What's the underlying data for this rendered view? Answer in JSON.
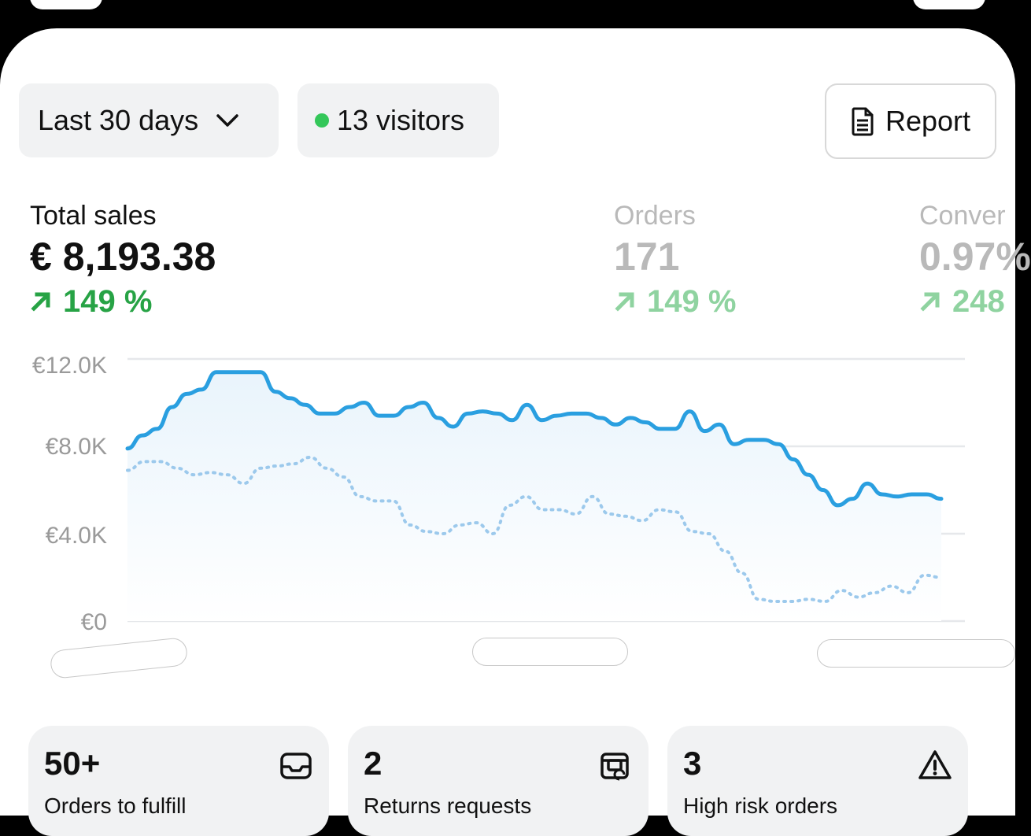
{
  "toolbar": {
    "range_label": "Last 30 days",
    "visitors_label": "13 visitors",
    "visitors_dot_color": "#34c759",
    "report_label": "Report"
  },
  "metrics": [
    {
      "label": "Total sales",
      "value": "€ 8,193.38",
      "delta": "149 %"
    },
    {
      "label": "Orders",
      "value": "171",
      "delta": "149 %"
    },
    {
      "label": "Conver",
      "value": "0.97%",
      "delta": "248"
    }
  ],
  "chart_data": {
    "type": "line",
    "ylim": [
      0,
      12000
    ],
    "y_ticks": [
      "€12.0K",
      "€8.0K",
      "€4.0K",
      "€0"
    ],
    "colors": {
      "current": "#2a9fe0",
      "previous": "#9cc9ec",
      "grid": "#e6e8eb"
    },
    "series": [
      {
        "style": "solid",
        "values": [
          7900,
          8500,
          8800,
          9800,
          10400,
          10600,
          11400,
          11400,
          11400,
          11400,
          10500,
          10200,
          9900,
          9500,
          9500,
          9800,
          10000,
          9400,
          9400,
          9800,
          10000,
          9300,
          8900,
          9500,
          9600,
          9500,
          9200,
          9900,
          9200,
          9400,
          9500,
          9500,
          9300,
          9000,
          9300,
          9100,
          8800,
          8800,
          9600,
          8700,
          9000,
          8100,
          8300,
          8300,
          8100,
          7400,
          6700,
          6000,
          5300,
          5600,
          6300,
          5800,
          5700,
          5800,
          5800,
          5600
        ]
      },
      {
        "style": "dotted",
        "values": [
          6900,
          7300,
          7300,
          7000,
          6700,
          6800,
          6700,
          6300,
          7000,
          7100,
          7200,
          7500,
          7000,
          6600,
          5700,
          5500,
          5500,
          4400,
          4100,
          4000,
          4400,
          4500,
          4000,
          5300,
          5700,
          5100,
          5100,
          4900,
          5700,
          4900,
          4800,
          4600,
          5100,
          5000,
          4100,
          4000,
          3200,
          2200,
          1000,
          900,
          900,
          1000,
          900,
          1400,
          1100,
          1300,
          1600,
          1300,
          2100,
          2000
        ]
      }
    ]
  },
  "cards": [
    {
      "num": "50+",
      "sub": "Orders to fulfill",
      "icon": "inbox-icon"
    },
    {
      "num": "2",
      "sub": "Returns requests",
      "icon": "return-box-icon"
    },
    {
      "num": "3",
      "sub": "High risk orders",
      "icon": "warning-icon"
    }
  ]
}
